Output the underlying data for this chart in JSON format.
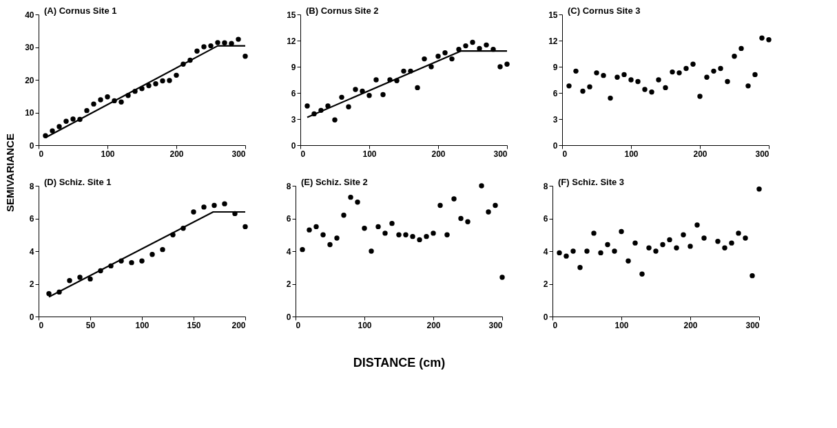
{
  "chart_data": [
    {
      "type": "scatter",
      "title": "(A) Cornus Site 1",
      "ylabel": "SEMIVARIANCE",
      "x": [
        10,
        20,
        30,
        40,
        50,
        60,
        70,
        80,
        90,
        100,
        110,
        120,
        130,
        140,
        150,
        160,
        170,
        180,
        190,
        200,
        210,
        220,
        230,
        240,
        250,
        260,
        270,
        280,
        290,
        300
      ],
      "xlim": [
        0,
        300
      ],
      "xticks": [
        0,
        100,
        200,
        300
      ],
      "ylim": [
        0,
        40
      ],
      "yticks": [
        0,
        10,
        20,
        30,
        40
      ],
      "grid": false,
      "marker": "circle",
      "series": [
        {
          "color": "#000000",
          "values": [
            2.9,
            4.4,
            5.7,
            7.3,
            8.0,
            7.9,
            10.6,
            12.6,
            13.9,
            14.8,
            13.6,
            13.2,
            15.2,
            16.5,
            17.3,
            18.2,
            18.8,
            19.7,
            19.8,
            21.4,
            24.8,
            26.0,
            28.8,
            30.1,
            30.4,
            31.4,
            31.3,
            31.1,
            32.4,
            27.2
          ]
        },
        {
          "type": "line",
          "marker": "none",
          "color": "#000000",
          "x": [
            10,
            260,
            300
          ],
          "values": [
            2.3,
            30.4,
            30.4
          ]
        }
      ]
    },
    {
      "type": "scatter",
      "title": "(B) Cornus Site 2",
      "x": [
        10,
        20,
        30,
        40,
        50,
        60,
        70,
        80,
        90,
        100,
        110,
        120,
        130,
        140,
        150,
        160,
        170,
        180,
        190,
        200,
        210,
        220,
        230,
        240,
        250,
        260,
        270,
        280,
        290,
        300
      ],
      "xlim": [
        0,
        300
      ],
      "xticks": [
        0,
        100,
        200,
        300
      ],
      "ylim": [
        0,
        15
      ],
      "yticks": [
        0,
        3,
        6,
        9,
        12,
        15
      ],
      "grid": false,
      "marker": "circle",
      "series": [
        {
          "color": "#000000",
          "values": [
            4.5,
            3.6,
            4.0,
            4.5,
            2.9,
            5.5,
            4.4,
            6.4,
            6.2,
            5.7,
            7.5,
            5.8,
            7.5,
            7.4,
            8.5,
            8.5,
            6.6,
            9.9,
            9.0,
            10.2,
            10.6,
            9.9,
            11.0,
            11.4,
            11.8,
            11.1,
            11.5,
            11.0,
            9.0,
            9.3
          ]
        },
        {
          "type": "line",
          "marker": "none",
          "color": "#000000",
          "x": [
            10,
            233,
            300
          ],
          "values": [
            3.2,
            10.8,
            10.8
          ]
        }
      ]
    },
    {
      "type": "scatter",
      "title": "(C) Cornus Site 3",
      "x": [
        10,
        20,
        30,
        40,
        50,
        60,
        70,
        80,
        90,
        100,
        110,
        120,
        130,
        140,
        150,
        160,
        170,
        180,
        190,
        200,
        210,
        220,
        230,
        240,
        250,
        260,
        270,
        280,
        290,
        300
      ],
      "xlim": [
        0,
        300
      ],
      "xticks": [
        0,
        100,
        200,
        300
      ],
      "ylim": [
        0,
        15
      ],
      "yticks": [
        0,
        3,
        6,
        9,
        12,
        15
      ],
      "grid": false,
      "marker": "circle",
      "series": [
        {
          "color": "#000000",
          "values": [
            6.8,
            8.5,
            6.2,
            6.7,
            8.3,
            8.0,
            5.4,
            7.8,
            8.1,
            7.5,
            7.3,
            6.4,
            6.1,
            7.5,
            6.6,
            8.4,
            8.3,
            8.8,
            9.3,
            5.6,
            7.8,
            8.5,
            8.8,
            7.3,
            10.2,
            11.1,
            6.8,
            8.1,
            12.3,
            12.1
          ]
        }
      ]
    },
    {
      "type": "scatter",
      "title": "(D) Schiz. Site 1",
      "x": [
        10,
        20,
        30,
        40,
        50,
        60,
        70,
        80,
        90,
        100,
        110,
        120,
        130,
        140,
        150,
        160,
        170,
        180,
        190,
        200
      ],
      "xlim": [
        0,
        200
      ],
      "xticks": [
        0,
        50,
        100,
        150,
        200
      ],
      "ylim": [
        0,
        8
      ],
      "yticks": [
        0,
        2,
        4,
        6,
        8
      ],
      "grid": false,
      "marker": "circle",
      "series": [
        {
          "color": "#000000",
          "values": [
            1.4,
            1.5,
            2.2,
            2.4,
            2.3,
            2.8,
            3.1,
            3.4,
            3.3,
            3.4,
            3.8,
            4.1,
            5.0,
            5.4,
            6.4,
            6.7,
            6.8,
            6.9,
            6.3,
            5.5
          ]
        },
        {
          "type": "line",
          "marker": "none",
          "color": "#000000",
          "x": [
            10,
            169,
            200
          ],
          "values": [
            1.2,
            6.4,
            6.4
          ]
        }
      ]
    },
    {
      "type": "scatter",
      "title": "(E) Schiz. Site 2",
      "xlabel": "DISTANCE (cm)",
      "x": [
        10,
        20,
        30,
        40,
        50,
        60,
        70,
        80,
        90,
        100,
        110,
        120,
        130,
        140,
        150,
        160,
        170,
        180,
        190,
        200,
        210,
        220,
        230,
        240,
        250,
        270,
        280,
        290,
        300
      ],
      "xlim": [
        0,
        300
      ],
      "xticks": [
        0,
        100,
        200,
        300
      ],
      "ylim": [
        0,
        8
      ],
      "yticks": [
        0,
        2,
        4,
        6,
        8
      ],
      "grid": false,
      "marker": "circle",
      "series": [
        {
          "color": "#000000",
          "values": [
            4.1,
            5.3,
            5.5,
            5.0,
            4.4,
            4.8,
            6.2,
            7.3,
            7.0,
            5.4,
            4.0,
            5.5,
            5.1,
            5.7,
            5.0,
            5.0,
            4.9,
            4.7,
            4.9,
            5.1,
            6.8,
            5.0,
            7.2,
            6.0,
            5.8,
            8.0,
            6.4,
            6.8,
            2.4
          ]
        }
      ]
    },
    {
      "type": "scatter",
      "title": "(F) Schiz. Site 3",
      "x": [
        10,
        20,
        30,
        40,
        50,
        60,
        70,
        80,
        90,
        100,
        110,
        120,
        130,
        140,
        150,
        160,
        170,
        180,
        190,
        200,
        210,
        220,
        240,
        250,
        260,
        270,
        280,
        290,
        300
      ],
      "xlim": [
        0,
        300
      ],
      "xticks": [
        0,
        100,
        200,
        300
      ],
      "ylim": [
        0,
        8
      ],
      "yticks": [
        0,
        2,
        4,
        6,
        8
      ],
      "grid": false,
      "marker": "circle",
      "series": [
        {
          "color": "#000000",
          "values": [
            3.9,
            3.7,
            4.0,
            3.0,
            4.0,
            5.1,
            3.9,
            4.4,
            4.0,
            5.2,
            3.4,
            4.5,
            2.6,
            4.2,
            4.0,
            4.4,
            4.7,
            4.2,
            5.0,
            4.3,
            5.6,
            4.8,
            4.6,
            4.2,
            4.5,
            5.1,
            4.8,
            2.5,
            7.8
          ]
        }
      ]
    }
  ]
}
